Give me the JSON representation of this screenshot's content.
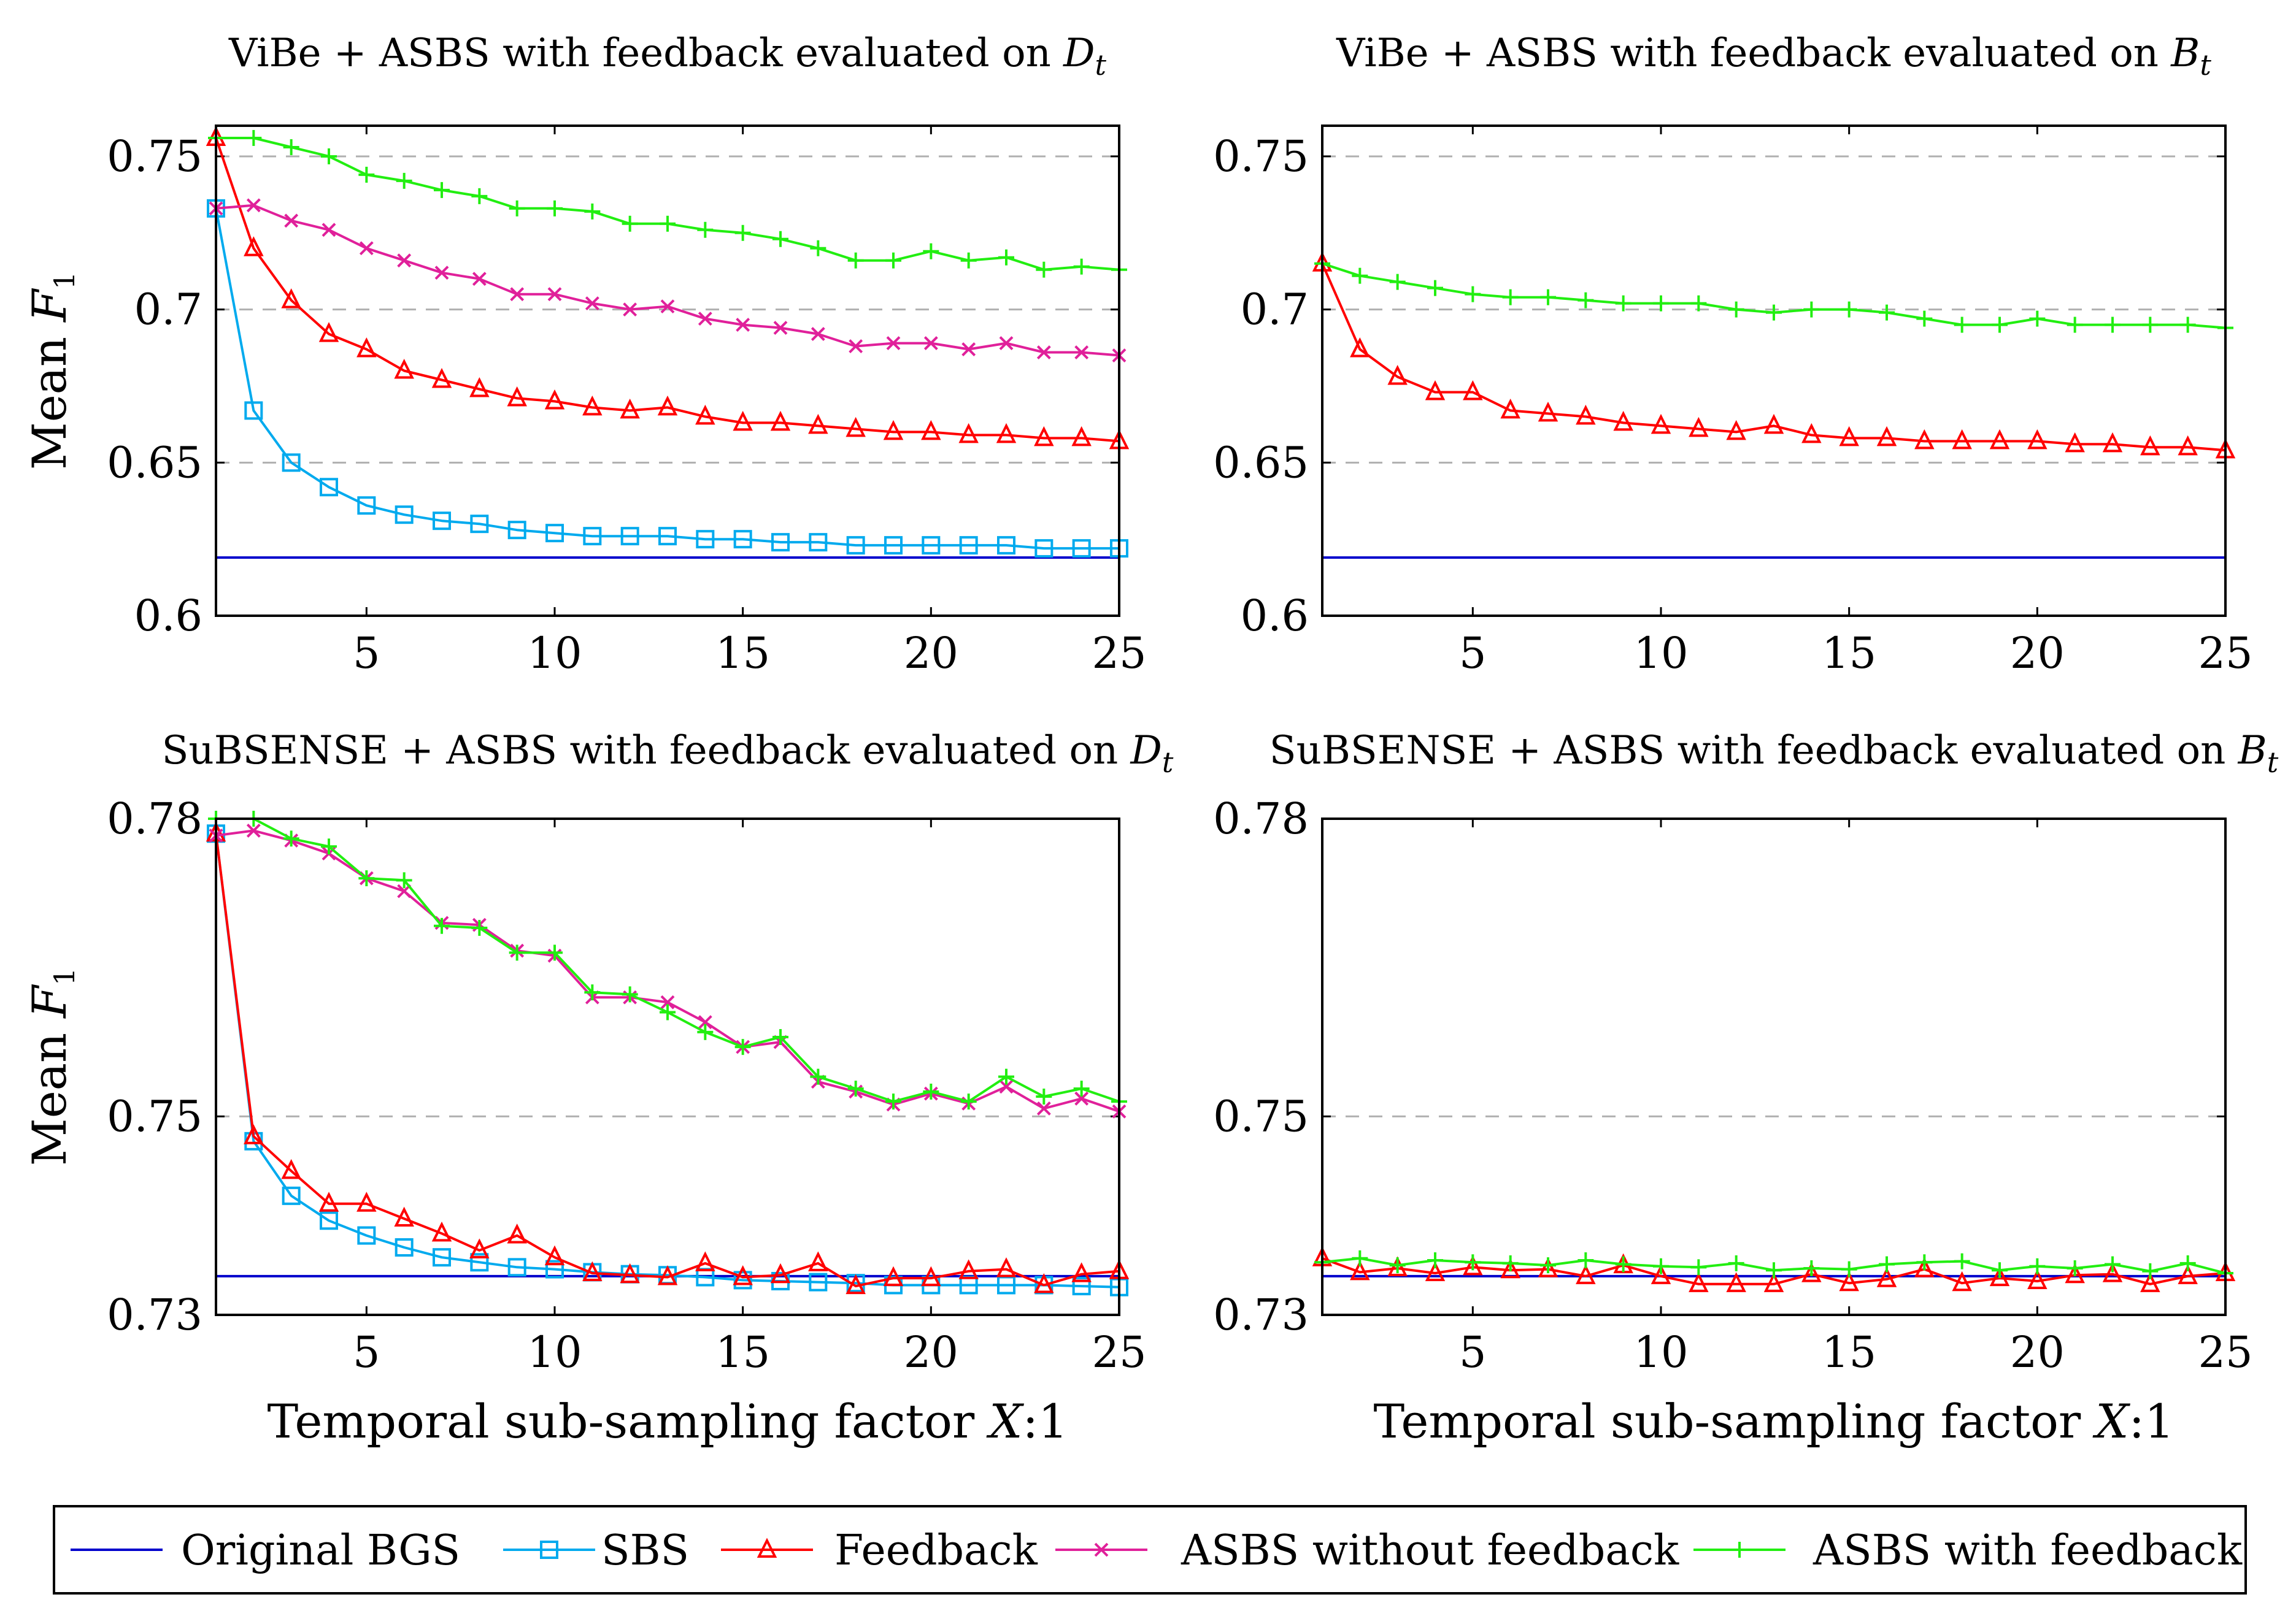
{
  "legend": {
    "entries": [
      {
        "key": "orig",
        "label": "Original BGS",
        "color": "#0000cc",
        "marker": "none"
      },
      {
        "key": "sbs",
        "label": "SBS",
        "color": "#00aaee",
        "marker": "square"
      },
      {
        "key": "fb",
        "label": "Feedback",
        "color": "#ff0000",
        "marker": "triangle"
      },
      {
        "key": "asbs_nf",
        "label": "ASBS without feedback",
        "color": "#e0209a",
        "marker": "x"
      },
      {
        "key": "asbs_f",
        "label": "ASBS with feedback",
        "color": "#22ee11",
        "marker": "plus"
      }
    ]
  },
  "chart_data": [
    {
      "type": "line",
      "title": "ViBe + ASBS with feedback evaluated on",
      "title_symbol": "D",
      "title_sub": "t",
      "ylabel": "Mean F",
      "ylabel_sub": "1",
      "xlabel": "",
      "xlim": [
        1,
        25
      ],
      "ylim": [
        0.6,
        0.76
      ],
      "xticks": [
        5,
        10,
        15,
        20,
        25
      ],
      "yticks": [
        0.6,
        0.65,
        0.7,
        0.75
      ],
      "ytick_labels": [
        "0.6",
        "0.65",
        "0.7",
        "0.75"
      ],
      "dashed_grid": [
        0.65,
        0.7,
        0.75
      ],
      "series": [
        {
          "key": "orig",
          "y": 0.619
        },
        {
          "key": "sbs",
          "x": [
            1,
            2,
            3,
            4,
            5,
            6,
            7,
            8,
            9,
            10,
            11,
            12,
            13,
            14,
            15,
            16,
            17,
            18,
            19,
            20,
            21,
            22,
            23,
            24,
            25
          ],
          "values": [
            0.733,
            0.667,
            0.65,
            0.642,
            0.636,
            0.633,
            0.631,
            0.63,
            0.628,
            0.627,
            0.626,
            0.626,
            0.626,
            0.625,
            0.625,
            0.624,
            0.624,
            0.623,
            0.623,
            0.623,
            0.623,
            0.623,
            0.622,
            0.622,
            0.622
          ]
        },
        {
          "key": "fb",
          "x": [
            1,
            2,
            3,
            4,
            5,
            6,
            7,
            8,
            9,
            10,
            11,
            12,
            13,
            14,
            15,
            16,
            17,
            18,
            19,
            20,
            21,
            22,
            23,
            24,
            25
          ],
          "values": [
            0.756,
            0.72,
            0.703,
            0.692,
            0.687,
            0.68,
            0.677,
            0.674,
            0.671,
            0.67,
            0.668,
            0.667,
            0.668,
            0.665,
            0.663,
            0.663,
            0.662,
            0.661,
            0.66,
            0.66,
            0.659,
            0.659,
            0.658,
            0.658,
            0.657
          ]
        },
        {
          "key": "asbs_nf",
          "x": [
            1,
            2,
            3,
            4,
            5,
            6,
            7,
            8,
            9,
            10,
            11,
            12,
            13,
            14,
            15,
            16,
            17,
            18,
            19,
            20,
            21,
            22,
            23,
            24,
            25
          ],
          "values": [
            0.733,
            0.734,
            0.729,
            0.726,
            0.72,
            0.716,
            0.712,
            0.71,
            0.705,
            0.705,
            0.702,
            0.7,
            0.701,
            0.697,
            0.695,
            0.694,
            0.692,
            0.688,
            0.689,
            0.689,
            0.687,
            0.689,
            0.686,
            0.686,
            0.685
          ]
        },
        {
          "key": "asbs_f",
          "x": [
            1,
            2,
            3,
            4,
            5,
            6,
            7,
            8,
            9,
            10,
            11,
            12,
            13,
            14,
            15,
            16,
            17,
            18,
            19,
            20,
            21,
            22,
            23,
            24,
            25
          ],
          "values": [
            0.756,
            0.756,
            0.753,
            0.75,
            0.744,
            0.742,
            0.739,
            0.737,
            0.733,
            0.733,
            0.732,
            0.728,
            0.728,
            0.726,
            0.725,
            0.723,
            0.72,
            0.716,
            0.716,
            0.719,
            0.716,
            0.717,
            0.713,
            0.714,
            0.713
          ]
        }
      ]
    },
    {
      "type": "line",
      "title": "ViBe + ASBS with feedback evaluated on",
      "title_symbol": "B",
      "title_sub": "t",
      "ylabel": "",
      "xlabel": "",
      "xlim": [
        1,
        25
      ],
      "ylim": [
        0.6,
        0.76
      ],
      "xticks": [
        5,
        10,
        15,
        20,
        25
      ],
      "yticks": [
        0.6,
        0.65,
        0.7,
        0.75
      ],
      "ytick_labels": [
        "0.6",
        "0.65",
        "0.7",
        "0.75"
      ],
      "dashed_grid": [
        0.65,
        0.7,
        0.75
      ],
      "series": [
        {
          "key": "orig",
          "y": 0.619
        },
        {
          "key": "fb",
          "x": [
            1,
            2,
            3,
            4,
            5,
            6,
            7,
            8,
            9,
            10,
            11,
            12,
            13,
            14,
            15,
            16,
            17,
            18,
            19,
            20,
            21,
            22,
            23,
            24,
            25
          ],
          "values": [
            0.715,
            0.687,
            0.678,
            0.673,
            0.673,
            0.667,
            0.666,
            0.665,
            0.663,
            0.662,
            0.661,
            0.66,
            0.662,
            0.659,
            0.658,
            0.658,
            0.657,
            0.657,
            0.657,
            0.657,
            0.656,
            0.656,
            0.655,
            0.655,
            0.654
          ]
        },
        {
          "key": "asbs_f",
          "x": [
            1,
            2,
            3,
            4,
            5,
            6,
            7,
            8,
            9,
            10,
            11,
            12,
            13,
            14,
            15,
            16,
            17,
            18,
            19,
            20,
            21,
            22,
            23,
            24,
            25
          ],
          "values": [
            0.715,
            0.711,
            0.709,
            0.707,
            0.705,
            0.704,
            0.704,
            0.703,
            0.702,
            0.702,
            0.702,
            0.7,
            0.699,
            0.7,
            0.7,
            0.699,
            0.697,
            0.695,
            0.695,
            0.697,
            0.695,
            0.695,
            0.695,
            0.695,
            0.694
          ]
        }
      ]
    },
    {
      "type": "line",
      "title": "SuBSENSE + ASBS with feedback evaluated on",
      "title_symbol": "D",
      "title_sub": "t",
      "ylabel": "Mean F",
      "ylabel_sub": "1",
      "xlabel": "Temporal sub-sampling factor X:1",
      "xlim": [
        1,
        25
      ],
      "ylim": [
        0.73,
        0.78
      ],
      "xticks": [
        5,
        10,
        15,
        20,
        25
      ],
      "yticks": [
        0.73,
        0.75,
        0.78
      ],
      "ytick_labels": [
        "0.73",
        "0.75",
        "0.78"
      ],
      "dashed_grid": [
        0.75
      ],
      "series": [
        {
          "key": "orig",
          "y": 0.7339
        },
        {
          "key": "sbs",
          "x": [
            1,
            2,
            3,
            4,
            5,
            6,
            7,
            8,
            9,
            10,
            11,
            12,
            13,
            14,
            15,
            16,
            17,
            18,
            19,
            20,
            21,
            22,
            23,
            24,
            25
          ],
          "values": [
            0.7785,
            0.7475,
            0.742,
            0.7395,
            0.738,
            0.7368,
            0.7358,
            0.7353,
            0.7348,
            0.7346,
            0.7343,
            0.7341,
            0.734,
            0.7338,
            0.7335,
            0.7334,
            0.7333,
            0.7332,
            0.733,
            0.733,
            0.733,
            0.733,
            0.733,
            0.7329,
            0.7328
          ]
        },
        {
          "key": "fb",
          "x": [
            1,
            2,
            3,
            4,
            5,
            6,
            7,
            8,
            9,
            10,
            11,
            12,
            13,
            14,
            15,
            16,
            17,
            18,
            19,
            20,
            21,
            22,
            23,
            24,
            25
          ],
          "values": [
            0.7785,
            0.748,
            0.7445,
            0.7412,
            0.7412,
            0.7397,
            0.7382,
            0.7365,
            0.738,
            0.7358,
            0.7342,
            0.734,
            0.7338,
            0.7352,
            0.7338,
            0.734,
            0.7352,
            0.7329,
            0.7337,
            0.7337,
            0.7344,
            0.7346,
            0.733,
            0.7341,
            0.7344
          ]
        },
        {
          "key": "asbs_nf",
          "x": [
            1,
            2,
            3,
            4,
            5,
            6,
            7,
            8,
            9,
            10,
            11,
            12,
            13,
            14,
            15,
            16,
            17,
            18,
            19,
            20,
            21,
            22,
            23,
            24,
            25
          ],
          "values": [
            0.7783,
            0.7788,
            0.7778,
            0.7765,
            0.774,
            0.7727,
            0.7695,
            0.7693,
            0.7667,
            0.7662,
            0.762,
            0.762,
            0.7615,
            0.7595,
            0.757,
            0.7575,
            0.7535,
            0.7525,
            0.7512,
            0.7523,
            0.7513,
            0.753,
            0.7508,
            0.7518,
            0.7505
          ]
        },
        {
          "key": "asbs_f",
          "x": [
            1,
            2,
            3,
            4,
            5,
            6,
            7,
            8,
            9,
            10,
            11,
            12,
            13,
            14,
            15,
            16,
            17,
            18,
            19,
            20,
            21,
            22,
            23,
            24,
            25
          ],
          "values": [
            0.78,
            0.78,
            0.778,
            0.7772,
            0.774,
            0.7738,
            0.7692,
            0.769,
            0.7665,
            0.7665,
            0.7625,
            0.7623,
            0.7605,
            0.7585,
            0.757,
            0.758,
            0.754,
            0.7528,
            0.7515,
            0.7525,
            0.7515,
            0.754,
            0.752,
            0.7528,
            0.7515
          ]
        }
      ]
    },
    {
      "type": "line",
      "title": "SuBSENSE + ASBS with feedback evaluated on",
      "title_symbol": "B",
      "title_sub": "t",
      "ylabel": "",
      "xlabel": "Temporal sub-sampling factor X:1",
      "xlim": [
        1,
        25
      ],
      "ylim": [
        0.73,
        0.78
      ],
      "xticks": [
        5,
        10,
        15,
        20,
        25
      ],
      "yticks": [
        0.73,
        0.75,
        0.78
      ],
      "ytick_labels": [
        "0.73",
        "0.75",
        "0.78"
      ],
      "dashed_grid": [
        0.75
      ],
      "series": [
        {
          "key": "orig",
          "y": 0.7339
        },
        {
          "key": "fb",
          "x": [
            1,
            2,
            3,
            4,
            5,
            6,
            7,
            8,
            9,
            10,
            11,
            12,
            13,
            14,
            15,
            16,
            17,
            18,
            19,
            20,
            21,
            22,
            23,
            24,
            25
          ],
          "values": [
            0.7357,
            0.7343,
            0.7347,
            0.7342,
            0.7348,
            0.7345,
            0.7346,
            0.7339,
            0.735,
            0.7339,
            0.7331,
            0.7331,
            0.7331,
            0.7341,
            0.7332,
            0.7336,
            0.7346,
            0.7332,
            0.7337,
            0.7334,
            0.734,
            0.7341,
            0.7331,
            0.7339,
            0.7342
          ]
        },
        {
          "key": "asbs_f",
          "x": [
            1,
            2,
            3,
            4,
            5,
            6,
            7,
            8,
            9,
            10,
            11,
            12,
            13,
            14,
            15,
            16,
            17,
            18,
            19,
            20,
            21,
            22,
            23,
            24,
            25
          ],
          "values": [
            0.7353,
            0.7357,
            0.735,
            0.7355,
            0.7353,
            0.7352,
            0.735,
            0.7355,
            0.7351,
            0.7349,
            0.7348,
            0.7352,
            0.7345,
            0.7347,
            0.7346,
            0.7351,
            0.7353,
            0.7354,
            0.7345,
            0.7349,
            0.7347,
            0.7351,
            0.7344,
            0.7352,
            0.7342
          ]
        }
      ]
    }
  ]
}
